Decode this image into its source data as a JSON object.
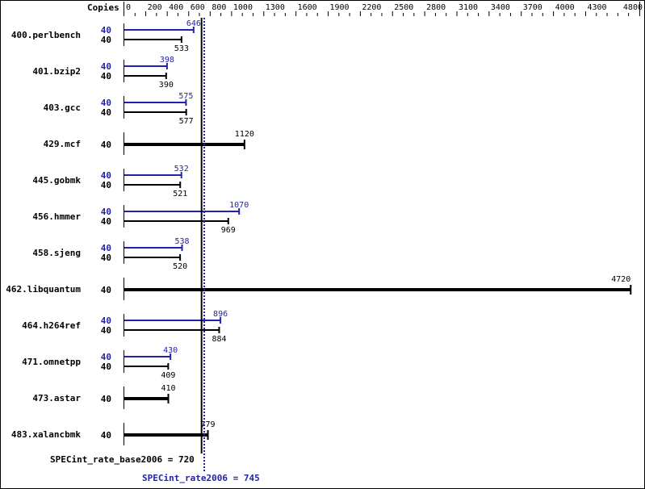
{
  "chart_data": {
    "type": "bar",
    "orientation": "horizontal",
    "axis_label": "Copies",
    "xlim": [
      0,
      4800
    ],
    "ticks": [
      0,
      200,
      400,
      600,
      800,
      1000,
      1300,
      1600,
      1900,
      2200,
      2500,
      2800,
      3100,
      3400,
      3700,
      4000,
      4300,
      4800
    ],
    "colors": {
      "base": "#000000",
      "peak": "#2222aa"
    },
    "benchmarks": [
      {
        "name": "400.perlbench",
        "peak_copies": "40",
        "peak": 646,
        "base_copies": "40",
        "base": 533
      },
      {
        "name": "401.bzip2",
        "peak_copies": "40",
        "peak": 398,
        "base_copies": "40",
        "base": 390
      },
      {
        "name": "403.gcc",
        "peak_copies": "40",
        "peak": 575,
        "base_copies": "40",
        "base": 577
      },
      {
        "name": "429.mcf",
        "base_copies": "40",
        "base": 1120
      },
      {
        "name": "445.gobmk",
        "peak_copies": "40",
        "peak": 532,
        "base_copies": "40",
        "base": 521
      },
      {
        "name": "456.hmmer",
        "peak_copies": "40",
        "peak": 1070,
        "base_copies": "40",
        "base": 969
      },
      {
        "name": "458.sjeng",
        "peak_copies": "40",
        "peak": 538,
        "base_copies": "40",
        "base": 520
      },
      {
        "name": "462.libquantum",
        "base_copies": "40",
        "base": 4720
      },
      {
        "name": "464.h264ref",
        "peak_copies": "40",
        "peak": 896,
        "base_copies": "40",
        "base": 884
      },
      {
        "name": "471.omnetpp",
        "peak_copies": "40",
        "peak": 430,
        "base_copies": "40",
        "base": 409
      },
      {
        "name": "473.astar",
        "base_copies": "40",
        "base": 410
      },
      {
        "name": "483.xalancbmk",
        "base_copies": "40",
        "base": 779
      }
    ],
    "base_summary": {
      "label": "SPECint_rate_base2006 = 720",
      "value": 720
    },
    "peak_summary": {
      "label": "SPECint_rate2006 = 745",
      "value": 745
    }
  }
}
